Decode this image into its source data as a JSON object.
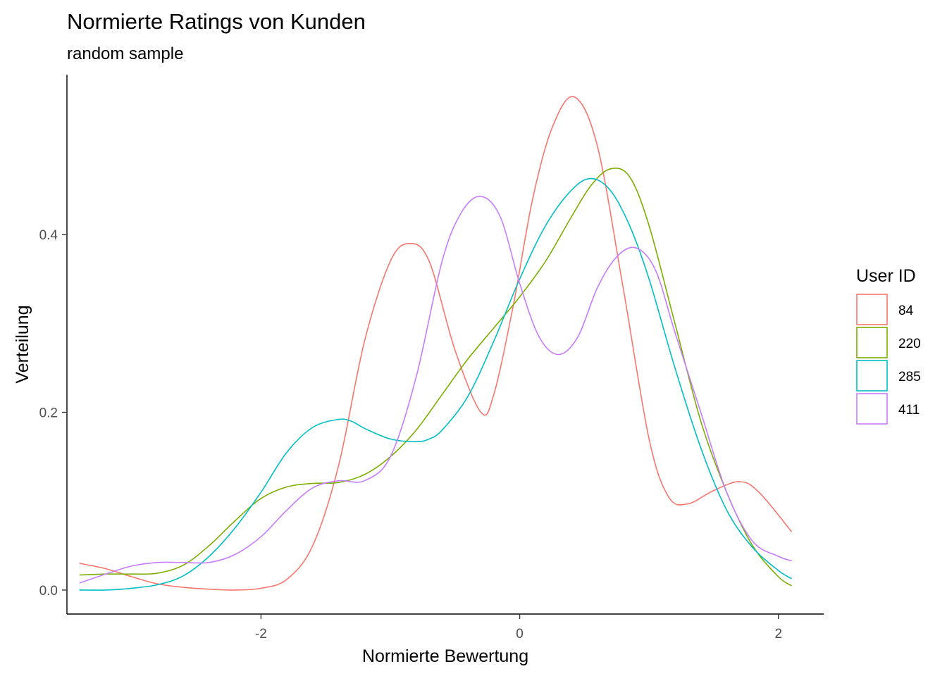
{
  "chart_data": {
    "type": "line",
    "title": "Normierte Ratings von Kunden",
    "subtitle": "random sample",
    "xlabel": "Normierte Bewertung",
    "ylabel": "Verteilung",
    "xlim": [
      -3.5,
      2.35
    ],
    "ylim": [
      -0.027,
      0.58
    ],
    "x_ticks": [
      -2,
      0,
      2
    ],
    "x_tick_labels": [
      "-2",
      "0",
      "2"
    ],
    "y_ticks": [
      0.0,
      0.2,
      0.4
    ],
    "y_tick_labels": [
      "0.0",
      "0.2",
      "0.4"
    ],
    "grid": false,
    "legend": {
      "title": "User ID",
      "position": "right"
    },
    "series": [
      {
        "name": "84",
        "color": "#F8766D",
        "x": [
          -3.4,
          -3.2,
          -3.0,
          -2.8,
          -2.6,
          -2.4,
          -2.2,
          -2.0,
          -1.8,
          -1.6,
          -1.4,
          -1.2,
          -1.0,
          -0.85,
          -0.7,
          -0.5,
          -0.3,
          -0.2,
          -0.05,
          0.1,
          0.25,
          0.42,
          0.6,
          0.8,
          1.0,
          1.15,
          1.3,
          1.5,
          1.7,
          1.85,
          2.1
        ],
        "y": [
          0.03,
          0.024,
          0.015,
          0.007,
          0.003,
          0.001,
          0.0,
          0.002,
          0.012,
          0.05,
          0.14,
          0.28,
          0.37,
          0.39,
          0.37,
          0.27,
          0.2,
          0.22,
          0.32,
          0.44,
          0.52,
          0.555,
          0.5,
          0.34,
          0.17,
          0.105,
          0.097,
          0.112,
          0.122,
          0.11,
          0.066
        ]
      },
      {
        "name": "220",
        "color": "#7CAE00",
        "x": [
          -3.4,
          -3.2,
          -3.0,
          -2.8,
          -2.6,
          -2.4,
          -2.2,
          -2.0,
          -1.8,
          -1.6,
          -1.4,
          -1.2,
          -1.0,
          -0.8,
          -0.6,
          -0.4,
          -0.2,
          0.0,
          0.2,
          0.4,
          0.55,
          0.7,
          0.85,
          1.0,
          1.2,
          1.4,
          1.6,
          1.8,
          2.0,
          2.1
        ],
        "y": [
          0.017,
          0.018,
          0.018,
          0.019,
          0.028,
          0.05,
          0.078,
          0.103,
          0.116,
          0.12,
          0.121,
          0.13,
          0.15,
          0.18,
          0.22,
          0.26,
          0.295,
          0.33,
          0.37,
          0.42,
          0.455,
          0.474,
          0.465,
          0.41,
          0.3,
          0.19,
          0.11,
          0.05,
          0.015,
          0.005
        ]
      },
      {
        "name": "285",
        "color": "#00BFC4",
        "x": [
          -3.4,
          -3.2,
          -3.0,
          -2.8,
          -2.6,
          -2.4,
          -2.2,
          -2.0,
          -1.8,
          -1.6,
          -1.4,
          -1.3,
          -1.2,
          -1.0,
          -0.8,
          -0.7,
          -0.6,
          -0.4,
          -0.2,
          0.0,
          0.2,
          0.4,
          0.55,
          0.7,
          0.85,
          1.0,
          1.2,
          1.4,
          1.6,
          1.8,
          2.0,
          2.1
        ],
        "y": [
          0.0,
          0.0,
          0.002,
          0.006,
          0.016,
          0.038,
          0.07,
          0.11,
          0.155,
          0.183,
          0.192,
          0.19,
          0.182,
          0.17,
          0.167,
          0.17,
          0.18,
          0.218,
          0.28,
          0.35,
          0.41,
          0.45,
          0.463,
          0.45,
          0.41,
          0.35,
          0.25,
          0.16,
          0.09,
          0.048,
          0.022,
          0.013
        ]
      },
      {
        "name": "411",
        "color": "#C77CFF",
        "x": [
          -3.4,
          -3.2,
          -3.0,
          -2.8,
          -2.6,
          -2.4,
          -2.2,
          -2.0,
          -1.8,
          -1.6,
          -1.4,
          -1.2,
          -1.0,
          -0.8,
          -0.6,
          -0.45,
          -0.3,
          -0.15,
          0.0,
          0.15,
          0.3,
          0.45,
          0.6,
          0.75,
          0.9,
          1.05,
          1.2,
          1.4,
          1.6,
          1.8,
          2.0,
          2.1
        ],
        "y": [
          0.008,
          0.018,
          0.027,
          0.031,
          0.031,
          0.031,
          0.04,
          0.06,
          0.09,
          0.115,
          0.123,
          0.123,
          0.15,
          0.24,
          0.37,
          0.425,
          0.443,
          0.42,
          0.345,
          0.285,
          0.265,
          0.285,
          0.34,
          0.375,
          0.385,
          0.36,
          0.29,
          0.2,
          0.11,
          0.055,
          0.038,
          0.033
        ]
      }
    ]
  }
}
